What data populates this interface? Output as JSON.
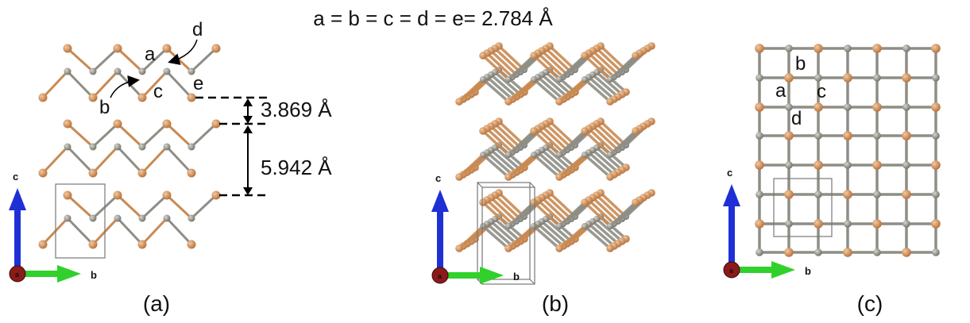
{
  "title": "a = b = c = d = e= 2.784 Å",
  "bond_labels": {
    "a": "a",
    "b": "b",
    "c": "c",
    "d": "d",
    "e": "e"
  },
  "distances": {
    "interlayer": "3.869 Å",
    "period": "5.942 Å"
  },
  "panels": [
    "(a)",
    "(b)",
    "(c)"
  ],
  "axis": {
    "up": "c",
    "right": "b",
    "origin": "a"
  },
  "colors": {
    "metal": "#c98a52",
    "nonmetal": "#8e8e86",
    "axis_c": "#1f2fd6",
    "axis_b": "#2fd12a",
    "axis_a": "#8b1a1a"
  }
}
